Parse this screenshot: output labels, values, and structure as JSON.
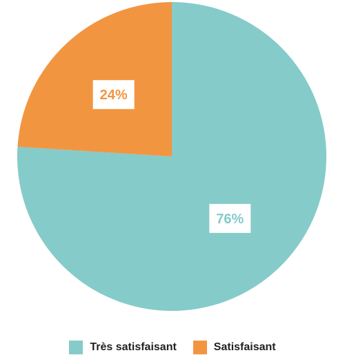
{
  "chart_data": {
    "type": "pie",
    "slices": [
      {
        "label": "Très satisfaisant",
        "value": 76,
        "display": "76%",
        "color": "#85CBC9"
      },
      {
        "label": "Satisfaisant",
        "value": 24,
        "display": "24%",
        "color": "#F29541"
      }
    ],
    "start": "top, clockwise",
    "legend_position": "bottom-center"
  }
}
